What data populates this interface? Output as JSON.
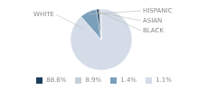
{
  "chart_data": {
    "type": "pie",
    "categories": [
      "WHITE",
      "HISPANIC",
      "ASIAN",
      "BLACK"
    ],
    "values": [
      88.6,
      8.9,
      1.4,
      1.1
    ],
    "value_labels": [
      "88.6%",
      "8.9%",
      "1.4%",
      "1.1%"
    ],
    "colors": [
      "#d4dce8",
      "#7a9fbb",
      "#1e3d5c",
      "#c5cfd8"
    ],
    "legend": "bottom"
  }
}
